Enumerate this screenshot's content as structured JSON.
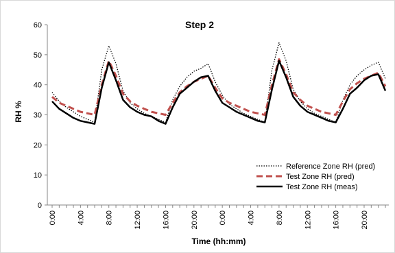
{
  "chart_data": {
    "type": "line",
    "title": "Step 2",
    "xlabel": "Time (hh:mm)",
    "ylabel": "RH %",
    "ylim": [
      0,
      60
    ],
    "yticks": [
      0,
      10,
      20,
      30,
      40,
      50,
      60
    ],
    "xtick_labels": [
      "0:00",
      "4:00",
      "8:00",
      "12:00",
      "16:00",
      "20:00",
      "0:00",
      "4:00",
      "8:00",
      "12:00",
      "16:00",
      "20:00"
    ],
    "x_hours": [
      0,
      1,
      2,
      3,
      4,
      5,
      6,
      7,
      8,
      9,
      10,
      11,
      12,
      13,
      14,
      15,
      16,
      17,
      18,
      19,
      20,
      21,
      22,
      23,
      24,
      25,
      26,
      27,
      28,
      29,
      30,
      31,
      32,
      33,
      34,
      35,
      36,
      37,
      38,
      39,
      40,
      41,
      42,
      43,
      44,
      45,
      46,
      47
    ],
    "legend_position": "bottom-right",
    "grid": false,
    "series": [
      {
        "name": "Reference Zone RH (pred)",
        "color": "#000000",
        "style": "dotted",
        "values": [
          37.5,
          34.5,
          32.5,
          31,
          29.5,
          28.5,
          27.5,
          45,
          53,
          47,
          38,
          34,
          32,
          30.5,
          29.5,
          28.5,
          27.5,
          35,
          39.5,
          42.5,
          44.5,
          45.5,
          47,
          41,
          36.5,
          33.5,
          32,
          30.5,
          29.5,
          28.5,
          27.5,
          45,
          54,
          48,
          38.5,
          34.5,
          32,
          30.5,
          29.5,
          28.5,
          27.5,
          35,
          40,
          43,
          45,
          46.5,
          47.5,
          42
        ]
      },
      {
        "name": "Test Zone RH (pred)",
        "color": "#c0504d",
        "style": "dashed",
        "values": [
          36,
          34,
          33,
          32,
          31,
          30.5,
          30,
          40,
          48,
          43,
          37,
          34.5,
          33,
          32,
          31,
          30.5,
          30,
          34,
          37.5,
          39.5,
          41,
          42,
          43,
          39,
          35.5,
          34,
          33,
          32,
          31,
          30.5,
          30,
          40,
          48.5,
          43.5,
          37.5,
          35,
          33,
          32,
          31,
          30.5,
          30,
          34.5,
          38.5,
          40.5,
          42,
          43,
          44,
          39.5
        ]
      },
      {
        "name": "Test Zone RH (meas)",
        "color": "#000000",
        "style": "solid",
        "values": [
          34.5,
          32,
          30.5,
          29,
          28,
          27.5,
          27,
          39,
          47.5,
          41.5,
          35,
          32.5,
          31,
          30,
          29.5,
          28,
          27,
          32.5,
          37,
          39,
          41,
          42.5,
          43,
          38,
          34,
          32.5,
          31,
          30,
          29,
          28,
          27.5,
          38.5,
          48,
          42.5,
          36,
          33,
          31,
          30,
          29,
          28,
          27.5,
          32,
          37,
          39,
          41.5,
          43,
          43.5,
          38
        ]
      }
    ]
  }
}
